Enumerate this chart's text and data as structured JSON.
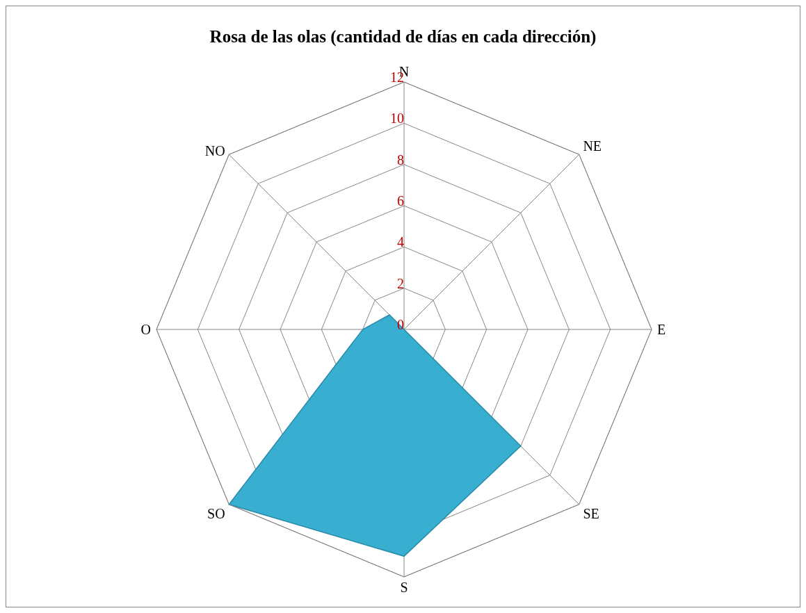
{
  "chart_data": {
    "type": "radar",
    "title": "Rosa de las olas (cantidad de días en cada dirección)",
    "categories": [
      "N",
      "NE",
      "E",
      "SE",
      "S",
      "SO",
      "O",
      "NO"
    ],
    "series": [
      {
        "color": "#38aed1",
        "values": [
          0,
          0,
          0,
          8,
          11,
          12,
          2,
          1
        ]
      }
    ],
    "ylim": [
      0,
      12
    ],
    "yticks": [
      0,
      2,
      4,
      6,
      8,
      10,
      12
    ],
    "grid": true
  }
}
